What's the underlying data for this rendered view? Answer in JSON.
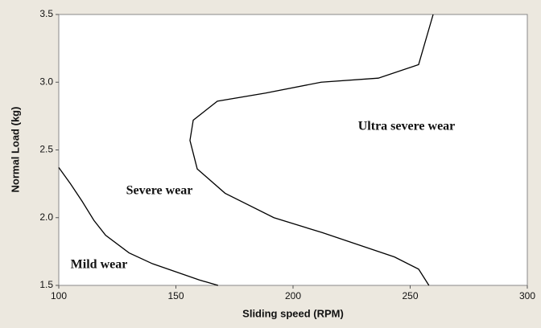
{
  "chart_data": {
    "type": "line",
    "xlabel": "Sliding speed (RPM)",
    "ylabel": "Normal Load (kg)",
    "xlim": [
      100,
      300
    ],
    "xticks": [
      100,
      150,
      200,
      250,
      300
    ],
    "ylim": [
      1.5,
      3.5
    ],
    "yticks": [
      1.5,
      {
        "value": 2,
        "label": "2.0"
      },
      2.5,
      {
        "value": 3,
        "label": "3.0"
      },
      3.5
    ],
    "series": [
      {
        "color": "#000000",
        "x": [
          100,
          105,
          110,
          115,
          120,
          130,
          140,
          150,
          160,
          168
        ],
        "values": [
          2.37,
          2.25,
          2.12,
          1.98,
          1.87,
          1.74,
          1.66,
          1.6,
          1.54,
          1.5
        ]
      },
      {
        "color": "#000000",
        "x": [
          259.8,
          253.6,
          236.4,
          212,
          188.3,
          167.7,
          157.4,
          156,
          159.1,
          171,
          191.8,
          212.4,
          243.3,
          253.6,
          258
        ],
        "values": [
          3.5,
          3.13,
          3.03,
          3.0,
          2.92,
          2.86,
          2.72,
          2.57,
          2.36,
          2.18,
          2.0,
          1.89,
          1.71,
          1.62,
          1.5
        ]
      }
    ],
    "annotations": [
      "Mild wear",
      "Severe wear",
      "Ultra severe wear"
    ]
  }
}
